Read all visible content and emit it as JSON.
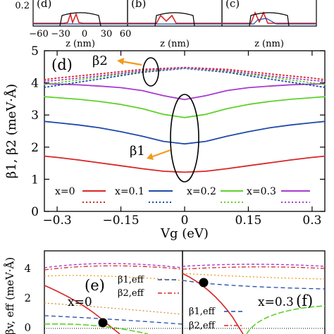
{
  "panels": {
    "top": {
      "ytick": "0.2",
      "labels": [
        "(d)",
        "(b)",
        "(c)"
      ],
      "xlabel": "z (nm)",
      "xticks": [
        "−60",
        "−30",
        "0",
        "30",
        "60"
      ]
    },
    "e": {
      "label": "(e)",
      "xlabel": "x=0",
      "legend": [
        "β1,eff",
        "β2,eff"
      ]
    },
    "f": {
      "label": "(f)",
      "xlabel": "x=0.3",
      "legend": [
        "β1,eff",
        "β2,eff"
      ]
    },
    "bottom_ylabel": "βv, eff (meV·Å)",
    "bottom_yticks": [
      "4",
      "2",
      "0"
    ]
  },
  "chart_data": {
    "type": "line",
    "panel_label": "(d)",
    "xlabel": "Vg (eV)",
    "ylabel": "β1, β2 (meV·Å)",
    "xlim": [
      -0.33,
      0.33
    ],
    "ylim": [
      0,
      5
    ],
    "xticks": [
      -0.3,
      -0.15,
      0,
      0.15,
      0.3
    ],
    "xtick_labels": [
      "−0.3",
      "−0.15",
      "0",
      "0.15",
      "0.3"
    ],
    "yticks": [
      0,
      1,
      2,
      3,
      4,
      5
    ],
    "ytick_labels": [
      "0",
      "1",
      "2",
      "3",
      "4",
      "5"
    ],
    "annotations": [
      {
        "text": "β2",
        "target_x": -0.02,
        "target_y": 4.4
      },
      {
        "text": "β1",
        "target_x": -0.02,
        "target_y": 2.3
      }
    ],
    "legend": [
      "x=0",
      "x=0.1",
      "x=0.2",
      "x=0.3"
    ],
    "series": [
      {
        "name": "x=0",
        "kind": "beta1",
        "color": "#d62728",
        "style": "solid",
        "x": [
          -0.33,
          -0.3,
          -0.25,
          -0.2,
          -0.15,
          -0.1,
          -0.05,
          0,
          0.05,
          0.1,
          0.15,
          0.2,
          0.25,
          0.3,
          0.33
        ],
        "y": [
          1.72,
          1.68,
          1.6,
          1.51,
          1.42,
          1.33,
          1.25,
          1.22,
          1.25,
          1.33,
          1.42,
          1.51,
          1.6,
          1.68,
          1.72
        ]
      },
      {
        "name": "x=0.1",
        "kind": "beta1",
        "color": "#1f4aa8",
        "style": "solid",
        "x": [
          -0.33,
          -0.3,
          -0.25,
          -0.2,
          -0.15,
          -0.1,
          -0.05,
          0,
          0.05,
          0.1,
          0.15,
          0.2,
          0.25,
          0.3,
          0.33
        ],
        "y": [
          2.8,
          2.76,
          2.69,
          2.6,
          2.48,
          2.34,
          2.18,
          2.1,
          2.18,
          2.34,
          2.48,
          2.6,
          2.69,
          2.76,
          2.8
        ]
      },
      {
        "name": "x=0.2",
        "kind": "beta1",
        "color": "#5fd12a",
        "style": "solid",
        "x": [
          -0.33,
          -0.3,
          -0.25,
          -0.2,
          -0.15,
          -0.1,
          -0.05,
          0,
          0.05,
          0.1,
          0.15,
          0.2,
          0.25,
          0.3,
          0.33
        ],
        "y": [
          3.57,
          3.54,
          3.49,
          3.42,
          3.33,
          3.2,
          3.02,
          2.92,
          3.02,
          3.2,
          3.33,
          3.42,
          3.49,
          3.54,
          3.57
        ]
      },
      {
        "name": "x=0.3",
        "kind": "beta1",
        "color": "#a63ccf",
        "style": "solid",
        "x": [
          -0.33,
          -0.3,
          -0.25,
          -0.2,
          -0.15,
          -0.1,
          -0.05,
          0,
          0.05,
          0.1,
          0.15,
          0.2,
          0.25,
          0.3,
          0.33
        ],
        "y": [
          3.97,
          3.96,
          3.94,
          3.9,
          3.85,
          3.76,
          3.6,
          3.48,
          3.6,
          3.76,
          3.85,
          3.9,
          3.94,
          3.96,
          3.97
        ]
      },
      {
        "name": "x=0",
        "kind": "beta2",
        "color": "#d62728",
        "style": "dotted",
        "x": [
          -0.33,
          -0.3,
          -0.2,
          -0.1,
          0,
          0.1,
          0.2,
          0.3,
          0.33
        ],
        "y": [
          4.1,
          4.15,
          4.28,
          4.42,
          4.48,
          4.42,
          4.28,
          4.15,
          4.1
        ]
      },
      {
        "name": "x=0.1",
        "kind": "beta2",
        "color": "#1f4aa8",
        "style": "dotted",
        "x": [
          -0.33,
          -0.3,
          -0.2,
          -0.1,
          0,
          0.1,
          0.2,
          0.3,
          0.33
        ],
        "y": [
          3.86,
          3.92,
          4.12,
          4.33,
          4.45,
          4.33,
          4.12,
          3.92,
          3.86
        ]
      },
      {
        "name": "x=0.2",
        "kind": "beta2",
        "color": "#5fd12a",
        "style": "dotted",
        "x": [
          -0.33,
          -0.3,
          -0.2,
          -0.1,
          0,
          0.1,
          0.2,
          0.3,
          0.33
        ],
        "y": [
          3.95,
          4.0,
          4.18,
          4.36,
          4.46,
          4.36,
          4.18,
          4.0,
          3.95
        ]
      },
      {
        "name": "x=0.3",
        "kind": "beta2",
        "color": "#a63ccf",
        "style": "dotted",
        "x": [
          -0.33,
          -0.3,
          -0.2,
          -0.1,
          0,
          0.1,
          0.2,
          0.3,
          0.33
        ],
        "y": [
          4.05,
          4.08,
          4.22,
          4.38,
          4.47,
          4.38,
          4.22,
          4.08,
          4.05
        ]
      }
    ]
  }
}
